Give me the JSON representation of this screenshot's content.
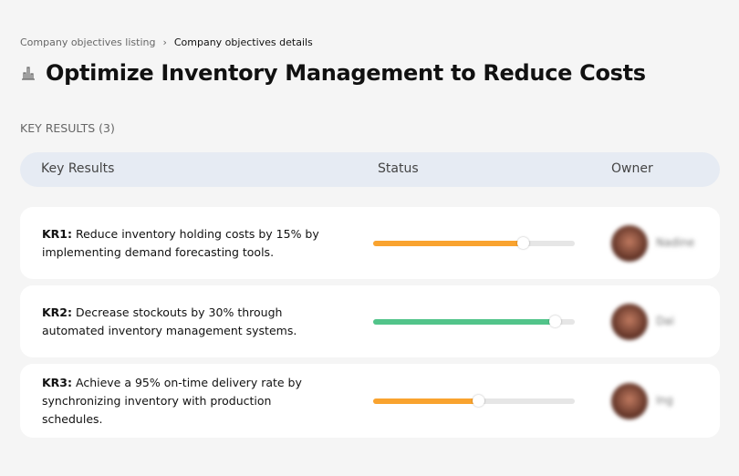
{
  "breadcrumb": {
    "items": [
      "Company objectives listing",
      "Company objectives details"
    ],
    "separator": "›"
  },
  "page": {
    "title": "Optimize Inventory Management to Reduce Costs",
    "icon": "building-chart-icon"
  },
  "section": {
    "label": "KEY RESULTS (3)"
  },
  "table": {
    "headers": {
      "key_results": "Key Results",
      "status": "Status",
      "owner": "Owner"
    },
    "rows": [
      {
        "id": "KR1:",
        "text": " Reduce inventory holding costs by 15% by implementing demand forecasting tools.",
        "progress": 74,
        "color": "#f9a32f",
        "owner": "Nadine"
      },
      {
        "id": "KR2:",
        "text": " Decrease stockouts by 30% through automated inventory management systems.",
        "progress": 90,
        "color": "#52c48a",
        "owner": "Dai"
      },
      {
        "id": "KR3:",
        "text": " Achieve a 95% on-time delivery rate by synchronizing inventory with production schedules.",
        "progress": 52,
        "color": "#f9a32f",
        "owner": "Ing"
      }
    ]
  }
}
